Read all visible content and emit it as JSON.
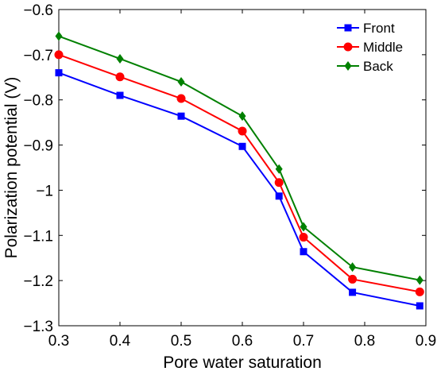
{
  "chart_data": {
    "type": "line",
    "title": "",
    "xlabel": "Pore water saturation",
    "ylabel": "Polarization potential (V)",
    "xlim": [
      0.3,
      0.9
    ],
    "ylim": [
      -1.3,
      -0.6
    ],
    "xticks": [
      0.3,
      0.4,
      0.5,
      0.6,
      0.7,
      0.8,
      0.9
    ],
    "xtick_labels": [
      "0.3",
      "0.4",
      "0.5",
      "0.6",
      "0.7",
      "0.8",
      "0.9"
    ],
    "yticks": [
      -0.6,
      -0.7,
      -0.8,
      -0.9,
      -1.0,
      -1.1,
      -1.2,
      -1.3
    ],
    "ytick_labels": [
      "−0.6",
      "−0.7",
      "−0.8",
      "−0.9",
      "−1",
      "−1.1",
      "−1.2",
      "−1.3"
    ],
    "grid": false,
    "legend_position": "top-right",
    "x": [
      0.3,
      0.4,
      0.5,
      0.6,
      0.66,
      0.7,
      0.78,
      0.89
    ],
    "series": [
      {
        "name": "Front",
        "color": "#0000ff",
        "marker": "square",
        "values": [
          -0.74,
          -0.79,
          -0.836,
          -0.903,
          -1.013,
          -1.136,
          -1.226,
          -1.256
        ]
      },
      {
        "name": "Middle",
        "color": "#ff0000",
        "marker": "circle",
        "values": [
          -0.7,
          -0.749,
          -0.797,
          -0.869,
          -0.983,
          -1.104,
          -1.197,
          -1.225
        ]
      },
      {
        "name": "Back",
        "color": "#008000",
        "marker": "diamond",
        "values": [
          -0.659,
          -0.709,
          -0.76,
          -0.836,
          -0.953,
          -1.081,
          -1.17,
          -1.199
        ]
      }
    ]
  }
}
